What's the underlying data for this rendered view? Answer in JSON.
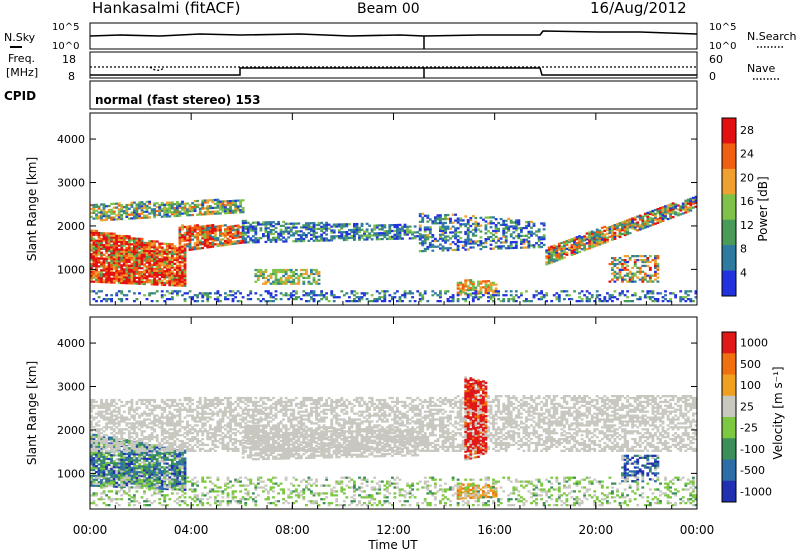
{
  "header": {
    "station": "Hankasalmi (fitACF)",
    "beam": "Beam 00",
    "date": "16/Aug/2012"
  },
  "noise_panel": {
    "left_label": "N.Sky",
    "right_label": "N.Search",
    "tick_top": "10^5",
    "tick_bottom": "10^0"
  },
  "freq_panel": {
    "left_label_1": "Freq.",
    "left_label_2": "[MHz]",
    "right_label": "Nave",
    "left_ticks": [
      "18",
      "8"
    ],
    "right_ticks": [
      "60",
      "0"
    ]
  },
  "cpid": {
    "label": "CPID",
    "value": "normal (fast stereo) 153"
  },
  "chart_data": [
    {
      "type": "heatmap",
      "name": "power",
      "ylabel": "Slant Range [km]",
      "ylim": [
        180,
        4600
      ],
      "yticks": [
        "1000",
        "2000",
        "3000",
        "4000"
      ],
      "colorbar_label": "Power [dB]",
      "colorbar_ticks": [
        "4",
        "8",
        "12",
        "16",
        "20",
        "24",
        "28"
      ],
      "colorbar_range": [
        0,
        30
      ],
      "colors": [
        "#2233dd",
        "#2f7aa0",
        "#4a9a5a",
        "#7ec24a",
        "#f0a030",
        "#f06010",
        "#e21010"
      ]
    },
    {
      "type": "heatmap",
      "name": "velocity",
      "ylabel": "Slant Range [km]",
      "ylim": [
        180,
        4600
      ],
      "yticks": [
        "1000",
        "2000",
        "3000",
        "4000"
      ],
      "colorbar_label": "Velocity [m s⁻¹]",
      "colorbar_ticks": [
        "1000",
        "500",
        "100",
        "25",
        "-25",
        "-100",
        "-500",
        "-1000"
      ],
      "colors": [
        "#2030b0",
        "#2c6fa8",
        "#3b8f5a",
        "#7cc840",
        "#c8c8c0",
        "#f0a020",
        "#f07010",
        "#e01818"
      ]
    }
  ],
  "x_axis": {
    "xlabel": "Time UT",
    "xlim_hours": [
      0,
      24
    ],
    "ticks": [
      "00:00",
      "04:00",
      "08:00",
      "12:00",
      "16:00",
      "20:00",
      "00:00"
    ]
  }
}
